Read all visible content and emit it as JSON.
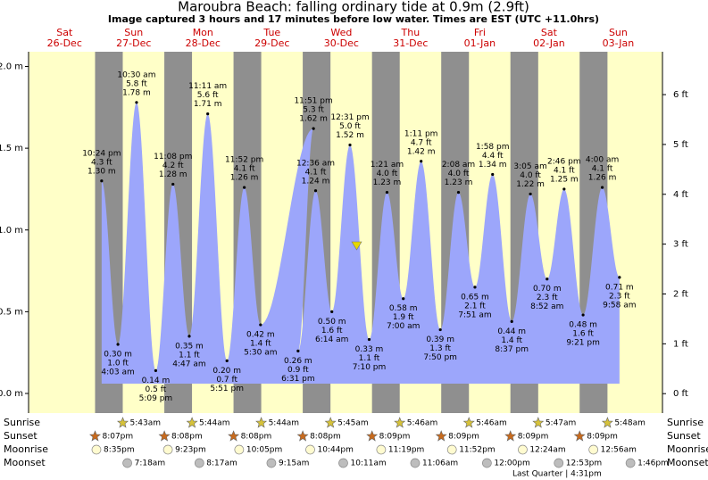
{
  "chart_data": {
    "type": "tide",
    "title": "Maroubra Beach: falling  ordinary tide at 0.9m (2.9ft)",
    "subtitle": "Image captured 3 hours and 17 minutes before low water. Times are EST (UTC +11.0hrs)",
    "ylim": [
      -0.12,
      2.09
    ],
    "yticks": [
      {
        "value": 0,
        "label": "0.0 m"
      },
      {
        "value": 0.5,
        "label": "0.5 m"
      },
      {
        "value": 1,
        "label": "1.0 m"
      },
      {
        "value": 1.5,
        "label": "1.5 m"
      },
      {
        "value": 2,
        "label": "2.0 m"
      }
    ],
    "y2lim": [
      -0.39,
      6.86
    ],
    "y2ticks": [
      {
        "value": 0,
        "label": "0 ft"
      },
      {
        "value": 1,
        "label": "1 ft"
      },
      {
        "value": 2,
        "label": "2 ft"
      },
      {
        "value": 3,
        "label": "3 ft"
      },
      {
        "value": 4,
        "label": "4 ft"
      },
      {
        "value": 5,
        "label": "5 ft"
      },
      {
        "value": 6,
        "label": "6 ft"
      }
    ],
    "row_labels": {
      "sunrise": "Sunrise",
      "sunset": "Sunset",
      "moonrise": "Moonrise",
      "moonset": "Moonset"
    },
    "color": "#9ca6fb",
    "days": [
      {
        "weekday": "Sat",
        "date": "26-Dec",
        "sunrise": null,
        "sunset": "8:07pm",
        "moonrise": "8:35pm",
        "moonset": null,
        "tides": [
          {
            "time": "10:24 pm",
            "ft": {
              "value": 4.3,
              "label": "4.3 ft"
            },
            "m": {
              "value": 1.3,
              "label": "1.30 m"
            }
          }
        ]
      },
      {
        "weekday": "Sun",
        "date": "27-Dec",
        "sunrise": "5:43am",
        "sunset": "8:08pm",
        "moonrise": "9:23pm",
        "moonset": "7:18am",
        "tides": [
          {
            "time": "4:03 am",
            "ft": {
              "value": 1.0,
              "label": "1.0 ft"
            },
            "m": {
              "value": 0.3,
              "label": "0.30 m"
            }
          },
          {
            "time": "10:30 am",
            "ft": {
              "value": 5.8,
              "label": "5.8 ft"
            },
            "m": {
              "value": 1.78,
              "label": "1.78 m"
            }
          },
          {
            "time": "5:09 pm",
            "ft": {
              "value": 0.5,
              "label": "0.5 ft"
            },
            "m": {
              "value": 0.14,
              "label": "0.14 m"
            }
          },
          {
            "time": "11:08 pm",
            "ft": {
              "value": 4.2,
              "label": "4.2 ft"
            },
            "m": {
              "value": 1.28,
              "label": "1.28 m"
            }
          }
        ]
      },
      {
        "weekday": "Mon",
        "date": "28-Dec",
        "sunrise": "5:44am",
        "sunset": "8:08pm",
        "moonrise": "10:05pm",
        "moonset": "8:17am",
        "tides": [
          {
            "time": "4:47 am",
            "ft": {
              "value": 1.1,
              "label": "1.1 ft"
            },
            "m": {
              "value": 0.35,
              "label": "0.35 m"
            }
          },
          {
            "time": "11:11 am",
            "ft": {
              "value": 5.6,
              "label": "5.6 ft"
            },
            "m": {
              "value": 1.71,
              "label": "1.71 m"
            }
          },
          {
            "time": "5:51 pm",
            "ft": {
              "value": 0.7,
              "label": "0.7 ft"
            },
            "m": {
              "value": 0.2,
              "label": "0.20 m"
            }
          },
          {
            "time": "11:52 pm",
            "ft": {
              "value": 4.1,
              "label": "4.1 ft"
            },
            "m": {
              "value": 1.26,
              "label": "1.26 m"
            }
          }
        ]
      },
      {
        "weekday": "Tue",
        "date": "29-Dec",
        "sunrise": "5:44am",
        "sunset": "8:08pm",
        "moonrise": "10:44pm",
        "moonset": "9:15am",
        "tides": [
          {
            "time": "5:30 am",
            "ft": {
              "value": 1.4,
              "label": "1.4 ft"
            },
            "m": {
              "value": 0.42,
              "label": "0.42 m"
            }
          },
          {
            "time": "11:51 pm",
            "ft": {
              "value": 5.3,
              "label": "5.3 ft"
            },
            "m": {
              "value": 1.62,
              "label": "1.62 m"
            }
          },
          {
            "time": "6:31 pm",
            "ft": {
              "value": 0.9,
              "label": "0.9 ft"
            },
            "m": {
              "value": 0.26,
              "label": "0.26 m"
            }
          }
        ]
      },
      {
        "weekday": "Wed",
        "date": "30-Dec",
        "sunrise": "5:45am",
        "sunset": "8:09pm",
        "moonrise": "11:19pm",
        "moonset": "10:11am",
        "tides": [
          {
            "time": "12:36 am",
            "ft": {
              "value": 4.1,
              "label": "4.1 ft"
            },
            "m": {
              "value": 1.24,
              "label": "1.24 m"
            }
          },
          {
            "time": "6:14 am",
            "ft": {
              "value": 1.6,
              "label": "1.6 ft"
            },
            "m": {
              "value": 0.5,
              "label": "0.50 m"
            }
          },
          {
            "time": "12:31 pm",
            "ft": {
              "value": 5.0,
              "label": "5.0 ft"
            },
            "m": {
              "value": 1.52,
              "label": "1.52 m"
            }
          },
          {
            "time": "7:10 pm",
            "ft": {
              "value": 1.1,
              "label": "1.1 ft"
            },
            "m": {
              "value": 0.33,
              "label": "0.33 m"
            }
          }
        ]
      },
      {
        "weekday": "Thu",
        "date": "31-Dec",
        "sunrise": "5:46am",
        "sunset": "8:09pm",
        "moonrise": "11:52pm",
        "moonset": "11:06am",
        "tides": [
          {
            "time": "1:21 am",
            "ft": {
              "value": 4.0,
              "label": "4.0 ft"
            },
            "m": {
              "value": 1.23,
              "label": "1.23 m"
            }
          },
          {
            "time": "7:00 am",
            "ft": {
              "value": 1.9,
              "label": "1.9 ft"
            },
            "m": {
              "value": 0.58,
              "label": "0.58 m"
            }
          },
          {
            "time": "1:11 pm",
            "ft": {
              "value": 4.7,
              "label": "4.7 ft"
            },
            "m": {
              "value": 1.42,
              "label": "1.42 m"
            }
          },
          {
            "time": "7:50 pm",
            "ft": {
              "value": 1.3,
              "label": "1.3 ft"
            },
            "m": {
              "value": 0.39,
              "label": "0.39 m"
            }
          }
        ]
      },
      {
        "weekday": "Fri",
        "date": "01-Jan",
        "sunrise": "5:46am",
        "sunset": "8:09pm",
        "moonrise": null,
        "moonset": "12:00pm",
        "moon_phase": "Last Quarter | 4:31pm",
        "tides": [
          {
            "time": "2:08 am",
            "ft": {
              "value": 4.0,
              "label": "4.0 ft"
            },
            "m": {
              "value": 1.23,
              "label": "1.23 m"
            }
          },
          {
            "time": "7:51 am",
            "ft": {
              "value": 2.1,
              "label": "2.1 ft"
            },
            "m": {
              "value": 0.65,
              "label": "0.65 m"
            }
          },
          {
            "time": "1:58 pm",
            "ft": {
              "value": 4.4,
              "label": "4.4 ft"
            },
            "m": {
              "value": 1.34,
              "label": "1.34 m"
            }
          },
          {
            "time": "8:37 pm",
            "ft": {
              "value": 1.4,
              "label": "1.4 ft"
            },
            "m": {
              "value": 0.44,
              "label": "0.44 m"
            }
          }
        ]
      },
      {
        "weekday": "Sat",
        "date": "02-Jan",
        "sunrise": "5:47am",
        "sunset": "8:09pm",
        "moonrise": "12:24am",
        "moonset": "12:53pm",
        "tides": [
          {
            "time": "3:05 am",
            "ft": {
              "value": 4.0,
              "label": "4.0 ft"
            },
            "m": {
              "value": 1.22,
              "label": "1.22 m"
            }
          },
          {
            "time": "8:52 am",
            "ft": {
              "value": 2.3,
              "label": "2.3 ft"
            },
            "m": {
              "value": 0.7,
              "label": "0.70 m"
            }
          },
          {
            "time": "2:46 pm",
            "ft": {
              "value": 4.1,
              "label": "4.1 ft"
            },
            "m": {
              "value": 1.25,
              "label": "1.25 m"
            }
          },
          {
            "time": "9:21 pm",
            "ft": {
              "value": 1.6,
              "label": "1.6 ft"
            },
            "m": {
              "value": 0.48,
              "label": "0.48 m"
            }
          }
        ]
      },
      {
        "weekday": "Sun",
        "date": "03-Jan",
        "sunrise": "5:48am",
        "sunset": null,
        "moonrise": "12:56am",
        "moonset": "1:46pm",
        "tides": [
          {
            "time": "4:00 am",
            "ft": {
              "value": 4.1,
              "label": "4.1 ft"
            },
            "m": {
              "value": 1.26,
              "label": "1.26 m"
            }
          },
          {
            "time": "9:58 am",
            "ft": {
              "value": 2.3,
              "label": "2.3 ft"
            },
            "m": {
              "value": 0.71,
              "label": "0.71 m"
            }
          }
        ]
      }
    ]
  }
}
